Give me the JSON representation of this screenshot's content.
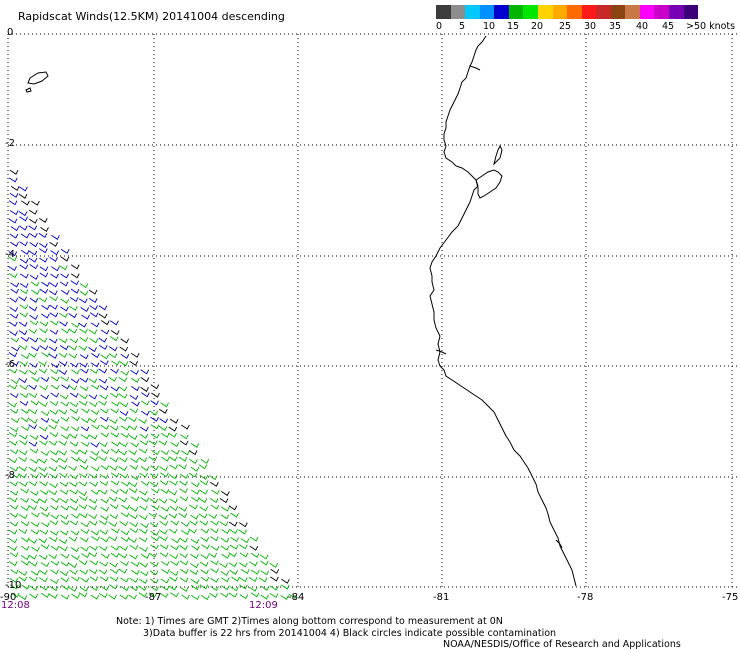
{
  "title": "Rapidscat Winds(12.5KM) 20141004 descending",
  "colorbar": {
    "colors": [
      "#3c3c3c",
      "#8c8c8c",
      "#00c8ff",
      "#0090ff",
      "#0000d0",
      "#00b400",
      "#00e600",
      "#ffd200",
      "#ffaa00",
      "#ff6a00",
      "#ff1a1a",
      "#c82828",
      "#8b4513",
      "#c87846",
      "#ff00ff",
      "#c800c8",
      "#7800b4",
      "#3c0078"
    ],
    "labels": [
      "0",
      "5",
      "10",
      "15",
      "20",
      "25",
      "30",
      "35",
      "40",
      "45",
      ">50 knots"
    ]
  },
  "axes": {
    "y_ticks": [
      "0",
      "-2",
      "-4",
      "-6",
      "-8",
      "-10"
    ],
    "x_ticks": [
      "-90",
      "-87",
      "-84",
      "-81",
      "-78",
      "-75"
    ]
  },
  "times": {
    "left": "12:08",
    "right": "12:09"
  },
  "notes": {
    "line1": "Note: 1) Times are GMT 2)Times along bottom correspond to measurement at 0N",
    "line2": "3)Data buffer is 22 hrs from 20141004 4) Black circles indicate possible contamination",
    "line3": "NOAA/NESDIS/Office of Research and Applications"
  },
  "colors": {
    "wind_green": "#00b400",
    "wind_blue": "#0000c8",
    "wind_black": "#000000",
    "time_label": "#6b007a"
  }
}
